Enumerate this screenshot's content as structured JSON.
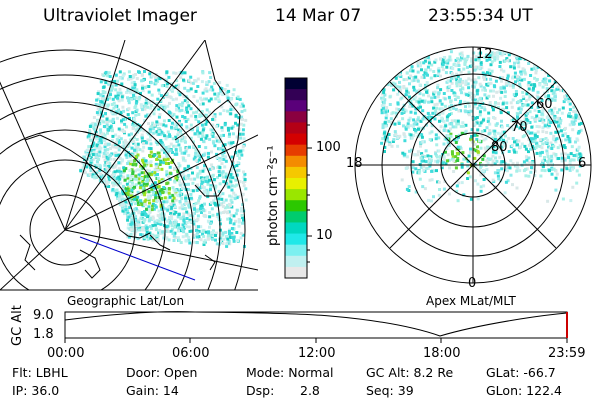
{
  "header": {
    "title": "Ultraviolet Imager",
    "date": "14 Mar 07",
    "time": "23:55:34 UT"
  },
  "left_panel": {
    "caption": "Geographic Lat/Lon"
  },
  "colorbar": {
    "label": "photon cm⁻²s⁻¹",
    "tick_100": "100",
    "tick_10": "10",
    "colors": [
      "#000033",
      "#330055",
      "#5a007a",
      "#8a0040",
      "#b40016",
      "#d40000",
      "#e63c00",
      "#f48c00",
      "#f5c800",
      "#e8f000",
      "#9ae600",
      "#2cc800",
      "#00cc6e",
      "#00d8c0",
      "#20e8e8",
      "#7cf0f0",
      "#c0f0f0",
      "#e8e8e8"
    ]
  },
  "right_panel": {
    "caption": "Apex  MLat/MLT",
    "mlt_12": "12",
    "mlt_18": "18",
    "mlt_6": "6",
    "mlt_0": "0",
    "lat_60": "60",
    "lat_70": "70",
    "lat_80": "80"
  },
  "altitude_plot": {
    "ylabel": "GC Alt",
    "y_max": "9.0",
    "y_min": "1.8",
    "x_ticks": [
      "00:00",
      "06:00",
      "12:00",
      "18:00",
      "23:59"
    ]
  },
  "info": {
    "flt": "Flt: LBHL",
    "ip": "IP: 36.0",
    "door": "Door: Open",
    "gain": "Gain: 14",
    "mode": "Mode: Normal",
    "dsp_label": "Dsp:",
    "dsp_value": "2.8",
    "gc_alt": "GC Alt: 8.2 Re",
    "seq": "Seq: 39",
    "glat": "GLat: -66.7",
    "glon": "GLon: 122.4"
  }
}
